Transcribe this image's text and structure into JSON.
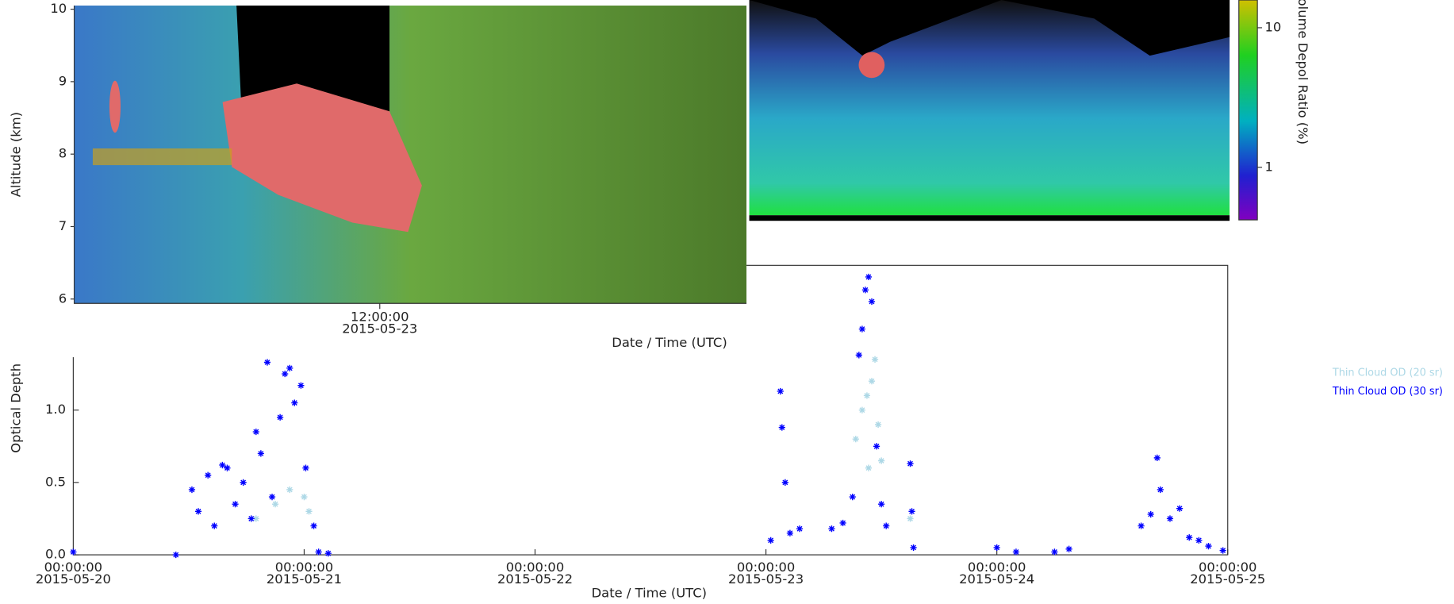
{
  "chart_data": [
    {
      "type": "heatmap",
      "ylabel": "Altitude (km)",
      "xlabel": "Date / Time (UTC)",
      "ylim": [
        5.94,
        10.05
      ],
      "yticks": [
        6,
        7,
        8,
        9,
        10
      ],
      "xlim": [
        "2015-05-23T09:30:00",
        "2015-05-23T15:00:00"
      ],
      "xticks": [
        {
          "value": "2015-05-23T12:00:00",
          "label": [
            "12:00:00",
            "2015-05-23"
          ]
        }
      ]
    },
    {
      "type": "heatmap",
      "log_color": true,
      "colorbar_label": "olume Depol Ratio (%)",
      "clim": [
        0.42,
        15.8
      ],
      "cticks": [
        1,
        10
      ]
    },
    {
      "type": "scatter",
      "ylabel": "Optical Depth",
      "xlabel": "Date / Time (UTC)",
      "legend": "right",
      "ylim": [
        0,
        2.0
      ],
      "yticks": [
        {
          "value": 0,
          "label": "0.0"
        },
        {
          "value": 0.5,
          "label": "0.5"
        },
        {
          "value": 1,
          "label": "1.0"
        }
      ],
      "xlim": [
        "2015-05-20T00:00:00",
        "2015-05-25T00:00:00"
      ],
      "xticks": [
        {
          "value": "2015-05-20T00:00:00",
          "label": [
            "00:00:00",
            "2015-05-20"
          ]
        },
        {
          "value": "2015-05-21T00:00:00",
          "label": [
            "00:00:00",
            "2015-05-21"
          ]
        },
        {
          "value": "2015-05-22T00:00:00",
          "label": [
            "00:00:00",
            "2015-05-22"
          ]
        },
        {
          "value": "2015-05-23T00:00:00",
          "label": [
            "00:00:00",
            "2015-05-23"
          ]
        },
        {
          "value": "2015-05-24T00:00:00",
          "label": [
            "00:00:00",
            "2015-05-24"
          ]
        },
        {
          "value": "2015-05-25T00:00:00",
          "label": [
            "00:00:00",
            "2015-05-25"
          ]
        }
      ],
      "series": [
        {
          "name": "Thin Cloud OD (20 sr)",
          "color": "#add8e6",
          "x": [
            "2015-05-20T19:00",
            "2015-05-20T21:00",
            "2015-05-20T22:30",
            "2015-05-21T00:00",
            "2015-05-21T00:30",
            "2015-05-23T09:20",
            "2015-05-23T10:00",
            "2015-05-23T10:30",
            "2015-05-23T10:40",
            "2015-05-23T11:00",
            "2015-05-23T11:20",
            "2015-05-23T11:40",
            "2015-05-23T12:00",
            "2015-05-23T15:00"
          ],
          "values": [
            0.25,
            0.35,
            0.45,
            0.4,
            0.3,
            0.8,
            1.0,
            1.1,
            0.6,
            1.2,
            1.35,
            0.9,
            0.65,
            0.25
          ]
        },
        {
          "name": "Thin Cloud OD (30 sr)",
          "color": "#0000ff",
          "x": [
            "2015-05-20T00:00",
            "2015-05-20T10:40",
            "2015-05-20T12:20",
            "2015-05-20T13:00",
            "2015-05-20T14:00",
            "2015-05-20T14:40",
            "2015-05-20T15:30",
            "2015-05-20T16:00",
            "2015-05-20T16:50",
            "2015-05-20T17:40",
            "2015-05-20T18:30",
            "2015-05-20T19:00",
            "2015-05-20T19:30",
            "2015-05-20T20:10",
            "2015-05-20T20:40",
            "2015-05-20T21:30",
            "2015-05-20T22:00",
            "2015-05-20T22:30",
            "2015-05-20T23:00",
            "2015-05-20T23:40",
            "2015-05-21T00:10",
            "2015-05-21T01:00",
            "2015-05-21T01:30",
            "2015-05-21T02:30",
            "2015-05-23T00:30",
            "2015-05-23T01:30",
            "2015-05-23T01:40",
            "2015-05-23T02:00",
            "2015-05-23T02:30",
            "2015-05-23T03:30",
            "2015-05-23T06:50",
            "2015-05-23T08:00",
            "2015-05-23T09:00",
            "2015-05-23T09:40",
            "2015-05-23T10:00",
            "2015-05-23T10:20",
            "2015-05-23T10:40",
            "2015-05-23T11:00",
            "2015-05-23T11:30",
            "2015-05-23T12:00",
            "2015-05-23T12:30",
            "2015-05-23T15:00",
            "2015-05-23T15:10",
            "2015-05-23T15:20",
            "2015-05-24T00:00",
            "2015-05-24T02:00",
            "2015-05-24T06:00",
            "2015-05-24T07:30",
            "2015-05-24T15:00",
            "2015-05-24T16:00",
            "2015-05-24T16:40",
            "2015-05-24T17:00",
            "2015-05-24T18:00",
            "2015-05-24T19:00",
            "2015-05-24T20:00",
            "2015-05-24T21:00",
            "2015-05-24T22:00",
            "2015-05-24T23:30"
          ],
          "values": [
            0.02,
            0.0,
            0.45,
            0.3,
            0.55,
            0.2,
            0.62,
            0.6,
            0.35,
            0.5,
            0.25,
            0.85,
            0.7,
            1.33,
            0.4,
            0.95,
            1.25,
            1.29,
            1.05,
            1.17,
            0.6,
            0.2,
            0.02,
            0.01,
            0.1,
            1.13,
            0.88,
            0.5,
            0.15,
            0.18,
            0.18,
            0.22,
            0.4,
            1.38,
            1.56,
            1.83,
            1.92,
            1.75,
            0.75,
            0.35,
            0.2,
            0.63,
            0.3,
            0.05,
            0.05,
            0.02,
            0.02,
            0.04,
            0.2,
            0.28,
            0.67,
            0.45,
            0.25,
            0.32,
            0.12,
            0.1,
            0.06,
            0.03
          ]
        }
      ]
    }
  ]
}
